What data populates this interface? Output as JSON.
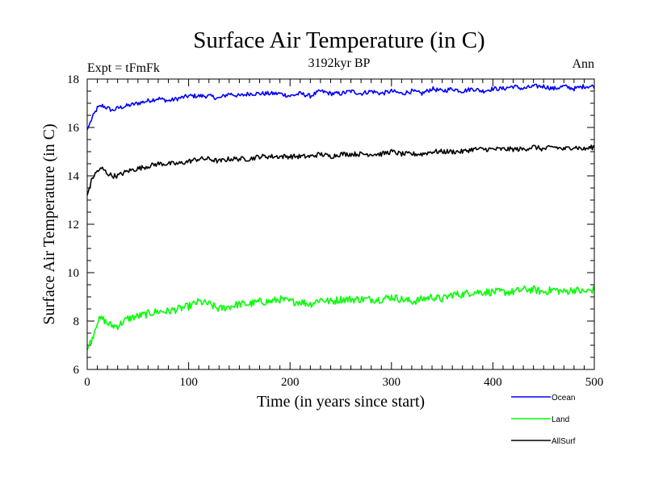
{
  "chart_data": {
    "type": "line",
    "title": "Surface Air Temperature (in C)",
    "subtitle": "3192kyr BP",
    "left_label": "Expt = tFmFk",
    "right_label": "Ann",
    "xlabel": "Time (in years since start)",
    "ylabel": "Surface Air Temperature (in C)",
    "xlim": [
      0,
      500
    ],
    "ylim": [
      6,
      18
    ],
    "x_ticks": [
      0,
      100,
      200,
      300,
      400,
      500
    ],
    "y_ticks": [
      6,
      8,
      10,
      12,
      14,
      16,
      18
    ],
    "x_tick_labels": [
      "0",
      "100",
      "200",
      "300",
      "400",
      "500"
    ],
    "y_tick_labels": [
      "6",
      "8",
      "10",
      "12",
      "14",
      "16",
      "18"
    ],
    "grid": false,
    "legend_position": "bottom-right",
    "x": [
      0,
      5,
      10,
      15,
      20,
      25,
      30,
      40,
      50,
      60,
      70,
      80,
      90,
      100,
      110,
      120,
      130,
      140,
      150,
      160,
      170,
      180,
      190,
      200,
      210,
      220,
      230,
      240,
      250,
      260,
      270,
      280,
      290,
      300,
      310,
      320,
      330,
      340,
      350,
      360,
      370,
      380,
      390,
      400,
      410,
      420,
      430,
      440,
      450,
      460,
      470,
      480,
      490,
      500
    ],
    "series": [
      {
        "name": "Ocean",
        "color": "#0000ff",
        "values": [
          15.9,
          16.4,
          16.8,
          16.9,
          16.8,
          16.7,
          16.8,
          16.9,
          17.0,
          17.1,
          17.2,
          17.1,
          17.2,
          17.3,
          17.3,
          17.3,
          17.2,
          17.4,
          17.3,
          17.4,
          17.4,
          17.4,
          17.4,
          17.3,
          17.4,
          17.3,
          17.5,
          17.4,
          17.4,
          17.5,
          17.4,
          17.5,
          17.4,
          17.5,
          17.4,
          17.5,
          17.4,
          17.6,
          17.5,
          17.6,
          17.5,
          17.6,
          17.5,
          17.6,
          17.6,
          17.7,
          17.6,
          17.7,
          17.7,
          17.6,
          17.7,
          17.6,
          17.7,
          17.7
        ]
      },
      {
        "name": "Land",
        "color": "#00ff00",
        "values": [
          6.8,
          7.3,
          8.0,
          8.1,
          7.9,
          7.8,
          7.8,
          8.1,
          8.2,
          8.3,
          8.4,
          8.4,
          8.5,
          8.6,
          8.8,
          8.7,
          8.5,
          8.6,
          8.7,
          8.7,
          8.8,
          8.8,
          8.9,
          8.8,
          8.8,
          8.7,
          8.9,
          8.8,
          8.9,
          8.9,
          8.9,
          8.9,
          8.9,
          9.0,
          8.9,
          8.8,
          8.9,
          9.0,
          8.9,
          9.1,
          9.1,
          9.2,
          9.2,
          9.2,
          9.2,
          9.2,
          9.3,
          9.3,
          9.2,
          9.3,
          9.2,
          9.3,
          9.2,
          9.3
        ]
      },
      {
        "name": "AllSurf",
        "color": "#000000",
        "values": [
          13.2,
          13.9,
          14.2,
          14.3,
          14.1,
          14.0,
          14.0,
          14.2,
          14.3,
          14.4,
          14.5,
          14.5,
          14.5,
          14.6,
          14.7,
          14.7,
          14.6,
          14.7,
          14.7,
          14.7,
          14.8,
          14.8,
          14.8,
          14.8,
          14.8,
          14.8,
          14.9,
          14.8,
          14.9,
          14.9,
          14.9,
          14.9,
          14.9,
          15.0,
          14.9,
          14.9,
          14.9,
          15.0,
          15.0,
          15.0,
          15.0,
          15.1,
          15.1,
          15.1,
          15.1,
          15.1,
          15.1,
          15.2,
          15.1,
          15.2,
          15.1,
          15.2,
          15.1,
          15.2
        ]
      }
    ]
  }
}
